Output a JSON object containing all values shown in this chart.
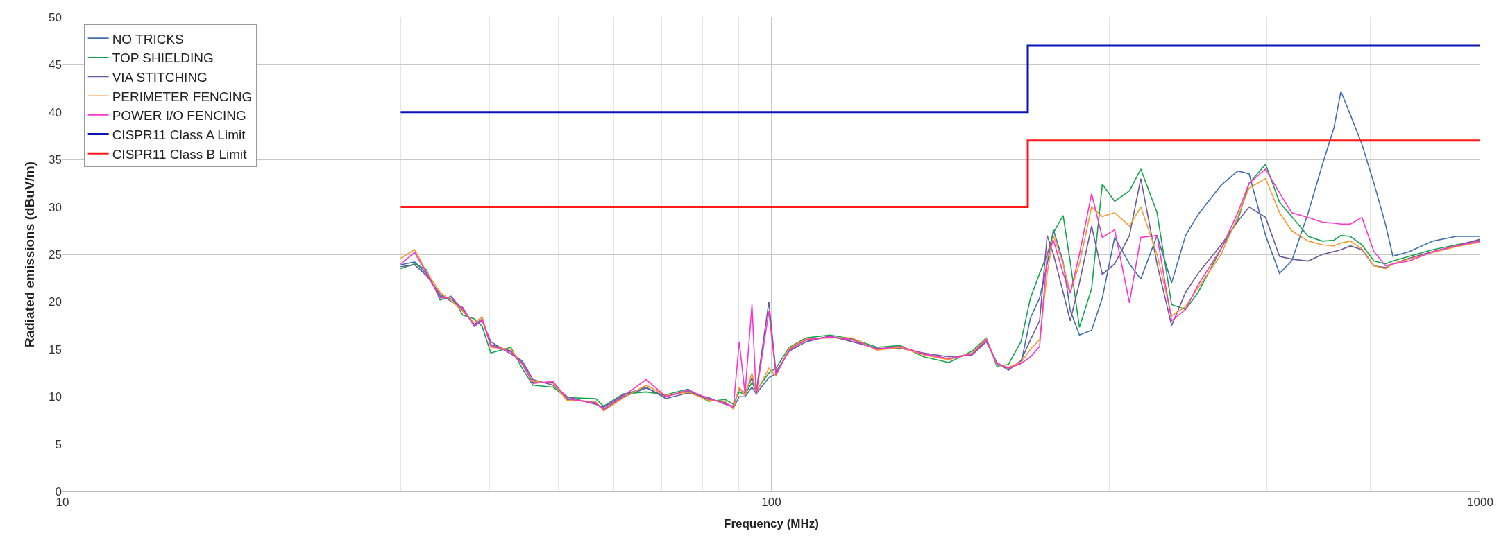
{
  "chart_data": {
    "type": "line",
    "xlabel": "Frequency (MHz)",
    "ylabel": "Radiated emissions (dBuV/m)",
    "log": "x",
    "xlim": [
      10,
      1000
    ],
    "xticks": [
      10,
      100,
      1000
    ],
    "ylim": [
      0,
      50
    ],
    "yticks": [
      0,
      5,
      10,
      15,
      20,
      25,
      30,
      35,
      40,
      45,
      50
    ],
    "grid": true,
    "legend": "top left",
    "line_style": "solid",
    "marker": "none",
    "x": [
      30,
      31.4,
      32.6,
      34.1,
      35.4,
      36.7,
      38.1,
      39.1,
      40.2,
      42.9,
      44.5,
      46.1,
      49.2,
      51.5,
      56.5,
      58,
      61.9,
      66.6,
      71,
      76.3,
      81.5,
      86.1,
      88.4,
      90.1,
      91.8,
      93.9,
      95.2,
      99.2,
      101.5,
      106,
      112,
      121,
      130,
      141,
      152,
      164,
      178,
      192,
      201,
      208,
      216,
      225,
      232,
      239,
      245,
      250,
      258,
      264,
      272,
      283,
      293,
      305,
      320,
      332,
      350,
      367,
      384,
      400,
      431,
      455,
      472,
      498,
      521,
      542,
      572,
      599,
      622,
      636,
      656,
      681,
      708,
      735,
      753,
      794,
      857,
      925,
      1000
    ],
    "series": [
      {
        "name": "NO TRICKS",
        "color": "#3e6fb0",
        "values": [
          23.9,
          24.2,
          23,
          20.6,
          20.3,
          19.1,
          17.6,
          18.2,
          15.5,
          14.8,
          13.6,
          11.5,
          11.5,
          9.7,
          9.4,
          8.6,
          10,
          10.9,
          10,
          10.6,
          9.7,
          9.4,
          8.8,
          10,
          10,
          11,
          10.3,
          12,
          12.4,
          15,
          16,
          16.3,
          16,
          15,
          15.3,
          14.5,
          14,
          14.5,
          16,
          13.5,
          13,
          13.5,
          18.3,
          20.4,
          24,
          27.6,
          24.2,
          19.1,
          16.5,
          17,
          20.4,
          26.8,
          24,
          22.4,
          27,
          22,
          27,
          29.2,
          32.3,
          33.8,
          33.5,
          27,
          23,
          24.3,
          29.4,
          34.5,
          38.4,
          42.2,
          39.7,
          36.6,
          32.5,
          28.2,
          24.8,
          25.3,
          26.4,
          26.9,
          26.9
        ]
      },
      {
        "name": "TOP SHIELDING",
        "color": "#12a54a",
        "values": [
          23.5,
          24,
          23.4,
          20.2,
          20.6,
          18.6,
          18.2,
          17.4,
          14.6,
          15.2,
          13,
          11.2,
          11,
          9.9,
          9.8,
          9,
          10.3,
          10.5,
          10.2,
          10.8,
          9.5,
          9.7,
          9.2,
          10.5,
          10.2,
          11.5,
          10.6,
          12.5,
          13,
          15.2,
          16.2,
          16.5,
          16.1,
          15.2,
          15.4,
          14.2,
          13.6,
          14.8,
          16.2,
          13.2,
          13.4,
          15.8,
          20.4,
          23,
          25,
          27.3,
          29.1,
          24.2,
          17.3,
          21.4,
          32.4,
          30.6,
          31.7,
          34,
          29.4,
          19.7,
          19.2,
          21,
          25.6,
          28.6,
          32.5,
          34.5,
          30.5,
          29,
          26.9,
          26.4,
          26.5,
          27,
          26.9,
          26,
          24.3,
          24,
          24.3,
          24.8,
          25.5,
          26,
          26.5
        ]
      },
      {
        "name": "VIA STITCHING",
        "color": "#6a5a9a",
        "values": [
          23.7,
          23.9,
          22.8,
          20.8,
          20,
          19.4,
          17.4,
          18,
          15.8,
          14.5,
          13.8,
          11.8,
          11.2,
          10,
          9.2,
          8.9,
          10.2,
          11,
          9.8,
          10.4,
          9.9,
          9.2,
          9,
          10.8,
          10.4,
          12,
          10.5,
          20,
          12.6,
          14.8,
          15.8,
          16.4,
          15.8,
          15.1,
          15.1,
          14.6,
          14.2,
          14.4,
          15.8,
          13.6,
          12.8,
          13.8,
          16,
          18,
          27,
          25,
          21,
          18,
          22,
          28,
          22.9,
          24,
          27,
          33,
          24,
          17.5,
          21,
          23,
          26,
          28.5,
          30,
          28.9,
          24.8,
          24.5,
          24.3,
          25,
          25.3,
          25.5,
          25.9,
          25.5,
          23.8,
          23.6,
          24,
          24.6,
          25.3,
          25.9,
          26.6
        ]
      },
      {
        "name": "PERIMETER FENCING",
        "color": "#f79a2e",
        "values": [
          24.6,
          25.5,
          23.2,
          21,
          20.1,
          19,
          17.8,
          18.4,
          15.2,
          15,
          13.4,
          11.6,
          11.4,
          9.6,
          9.5,
          8.5,
          9.9,
          11.2,
          10.1,
          10.5,
          9.6,
          9.5,
          8.7,
          11,
          10.1,
          12.5,
          10.4,
          13,
          12.2,
          15.1,
          16.1,
          16.2,
          16.2,
          14.9,
          15.2,
          14.4,
          13.9,
          14.6,
          16.1,
          13.4,
          13.1,
          13.6,
          15,
          16,
          23,
          27,
          24,
          21,
          24,
          30,
          29,
          29.4,
          28,
          30,
          25,
          18.5,
          19.5,
          21.5,
          25,
          29,
          32,
          33,
          29.4,
          27.5,
          26.4,
          26,
          25.9,
          26.2,
          26.4,
          25.6,
          23.8,
          23.5,
          24,
          24.5,
          25.2,
          25.8,
          26.3
        ]
      },
      {
        "name": "POWER I/O FENCING",
        "color": "#ff33cc",
        "values": [
          24,
          25.2,
          23.1,
          20.4,
          20.5,
          19.2,
          17.5,
          18.1,
          15.4,
          14.7,
          13.5,
          11.4,
          11.6,
          9.8,
          9.3,
          8.7,
          10.1,
          11.8,
          10,
          10.7,
          9.8,
          9.3,
          8.9,
          15.8,
          10.3,
          19.7,
          10.2,
          19,
          12.3,
          14.9,
          16,
          16.3,
          16,
          15,
          15.3,
          14.5,
          14,
          14.5,
          16,
          13.5,
          13,
          13.5,
          14.2,
          15.3,
          25,
          26.5,
          23,
          20.9,
          25,
          31.4,
          26.8,
          27.6,
          19.9,
          26.8,
          27,
          18,
          19.2,
          21.8,
          25.6,
          29.4,
          32.5,
          34,
          31.5,
          29.4,
          28.9,
          28.4,
          28.3,
          28.2,
          28.2,
          28.9,
          25.3,
          23.8,
          24,
          24.3,
          25.3,
          25.9,
          26.4
        ]
      },
      {
        "name": "CISPR11 Class A Limit",
        "type": "step",
        "color": "#0a14b4",
        "x": [
          30,
          230,
          1000
        ],
        "values": [
          40,
          47,
          47
        ]
      },
      {
        "name": "CISPR11 Class B Limit",
        "type": "step",
        "color": "#ff1a1a",
        "x": [
          30,
          230,
          1000
        ],
        "values": [
          30,
          37,
          37
        ]
      }
    ]
  }
}
